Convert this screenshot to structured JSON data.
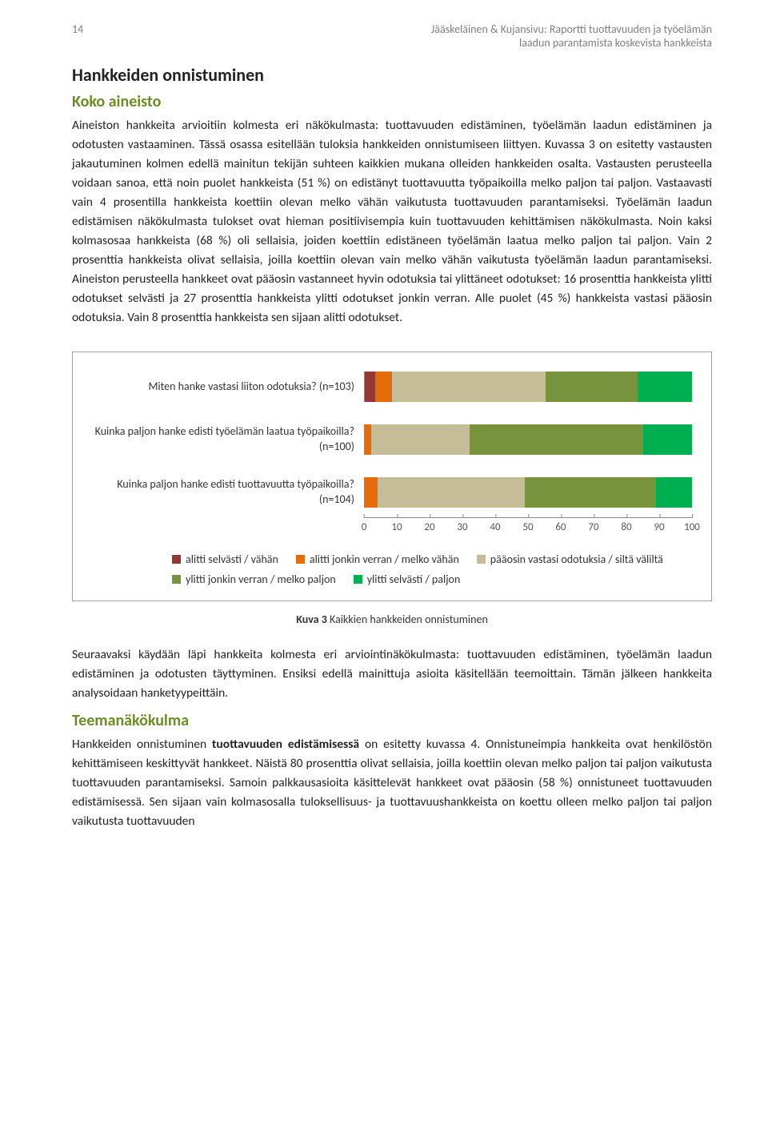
{
  "header": {
    "page_number": "14",
    "report_line1": "Jääskeläinen & Kujansivu: Raportti tuottavuuden ja työelämän",
    "report_line2": "laadun parantamista koskevista hankkeista"
  },
  "headings": {
    "h1": "Hankkeiden onnistuminen",
    "sub1": "Koko aineisto",
    "sub2": "Teemanäkökulma"
  },
  "paragraphs": {
    "intro": "Aineiston hankkeita arvioitiin kolmesta eri näkökulmasta: tuottavuuden edistäminen, työelämän laadun edistäminen ja odotusten vastaaminen. Tässä osassa esitellään tuloksia hankkeiden onnistumiseen liittyen. Kuvassa 3 on esitetty vastausten jakautuminen kolmen edellä mainitun tekijän suhteen kaikkien mukana olleiden hankkeiden osalta. Vastausten perusteella voidaan sanoa, että noin puolet hankkeista (51 %) on edistänyt tuottavuutta työpaikoilla melko paljon tai paljon. Vastaavasti vain 4 prosentilla hankkeista koettiin olevan melko vähän vaikutusta tuottavuuden parantamiseksi. Työelämän laadun edistämisen näkökulmasta tulokset ovat hieman positiivisempia kuin tuottavuuden kehittämisen näkökulmasta. Noin kaksi kolmasosaa hankkeista (68 %) oli sellaisia, joiden koettiin edistäneen työelämän laatua melko paljon tai paljon. Vain 2 prosenttia hankkeista olivat sellaisia, joilla koettiin olevan vain melko vähän vaikutusta työelämän laadun parantamiseksi. Aineiston perusteella hankkeet ovat pääosin vastanneet hyvin odotuksia tai ylittäneet odotukset: 16 prosenttia hankkeista ylitti odotukset selvästi ja 27 prosenttia hankkeista ylitti odotukset jonkin verran. Alle puolet (45 %) hankkeista vastasi pääosin odotuksia. Vain 8 prosenttia hankkeista sen sijaan alitti odotukset.",
    "after_chart": "Seuraavaksi käydään läpi hankkeita kolmesta eri arviointinäkökulmasta: tuottavuuden edistäminen, työelämän laadun edistäminen ja odotusten täyttyminen. Ensiksi edellä mainittuja asioita käsitellään teemoittain. Tämän jälkeen hankkeita analysoidaan hanketyypeittäin.",
    "teema_a": "Hankkeiden onnistuminen ",
    "teema_b_bold": "tuottavuuden edistämisessä",
    "teema_c": " on esitetty kuvassa 4. Onnistuneimpia hankkeita ovat henkilöstön kehittämiseen keskittyvät hankkeet. Näistä 80 prosenttia olivat sellaisia, joilla koettiin olevan melko paljon tai paljon vaikutusta tuottavuuden parantamiseksi. Samoin palkkausasioita käsittelevät hankkeet ovat pääosin (58 %) onnistuneet tuottavuuden edistämisessä. Sen sijaan vain kolmasosalla tuloksellisuus- ja tuottavuushankkeista on koettu olleen melko paljon tai paljon vaikutusta tuottavuuden"
  },
  "chart": {
    "type": "stacked-bar-horizontal",
    "colors": {
      "c1": "#953735",
      "c2": "#e46c0a",
      "c3": "#c4bd97",
      "c4": "#77933c",
      "c5": "#00b050",
      "border": "#9f9f9f",
      "axis": "#888888"
    },
    "rows": [
      {
        "label": "Miten hanke vastasi liiton odotuksia? (n=103)",
        "segments": [
          3,
          5,
          45,
          27,
          16
        ]
      },
      {
        "label": "Kuinka paljon hanke edisti työelämän laatua työpaikoilla? (n=100)",
        "segments": [
          0,
          2,
          30,
          53,
          15
        ]
      },
      {
        "label": "Kuinka paljon hanke edisti tuottavuutta työpaikoilla? (n=104)",
        "segments": [
          0,
          4,
          45,
          40,
          11
        ]
      }
    ],
    "x_ticks": [
      0,
      10,
      20,
      30,
      40,
      50,
      60,
      70,
      80,
      90,
      100
    ],
    "legend": [
      {
        "color": "#953735",
        "label": "alitti selvästi / vähän"
      },
      {
        "color": "#e46c0a",
        "label": "alitti jonkin verran / melko vähän"
      },
      {
        "color": "#c4bd97",
        "label": "pääosin vastasi odotuksia / siltä väliltä"
      },
      {
        "color": "#77933c",
        "label": "ylitti jonkin verran / melko paljon"
      },
      {
        "color": "#00b050",
        "label": "ylitti selvästi / paljon"
      }
    ]
  },
  "caption": {
    "bold": "Kuva 3",
    "rest": " Kaikkien hankkeiden onnistuminen"
  }
}
